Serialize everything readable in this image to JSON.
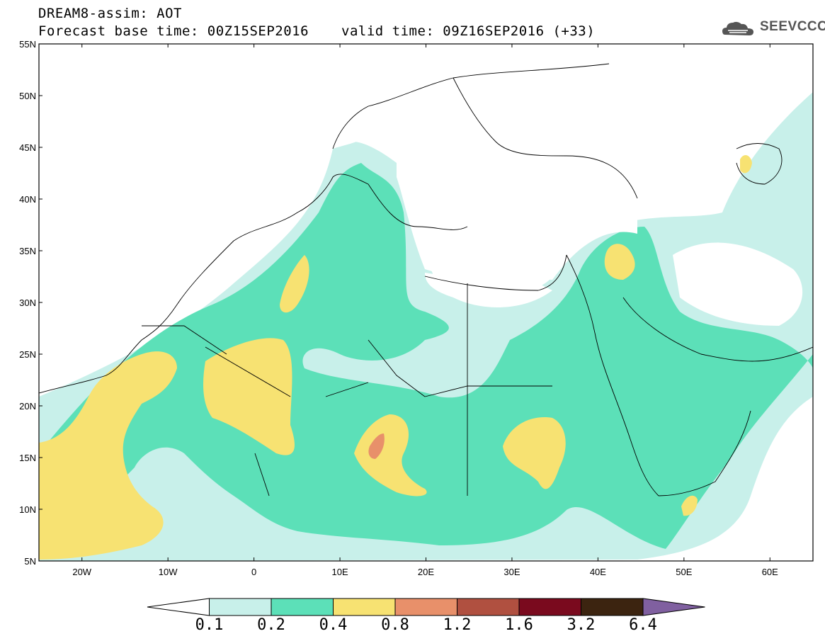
{
  "header": {
    "line1": "DREAM8-assim: AOT",
    "line2_left": "Forecast base time: 00Z15SEP2016",
    "line2_right": "valid time: 09Z16SEP2016 (+33)",
    "logo_text": "SEEVCCC"
  },
  "map": {
    "lon_range": [
      -25,
      65
    ],
    "lat_range": [
      5,
      55
    ],
    "lat_labels": [
      "55N",
      "50N",
      "45N",
      "40N",
      "35N",
      "30N",
      "25N",
      "20N",
      "15N",
      "10N",
      "5N"
    ],
    "lon_labels": [
      "20W",
      "10W",
      "0",
      "10E",
      "20E",
      "30E",
      "40E",
      "50E",
      "60E"
    ]
  },
  "colorbar": {
    "levels": [
      "0.1",
      "0.2",
      "0.4",
      "0.8",
      "1.2",
      "1.6",
      "3.2",
      "6.4"
    ],
    "colors": [
      "#ffffff",
      "#c8f0ea",
      "#5ce0b8",
      "#f7e272",
      "#e8906a",
      "#b05040",
      "#7a0a1e",
      "#3c2410",
      "#8060a0"
    ]
  }
}
